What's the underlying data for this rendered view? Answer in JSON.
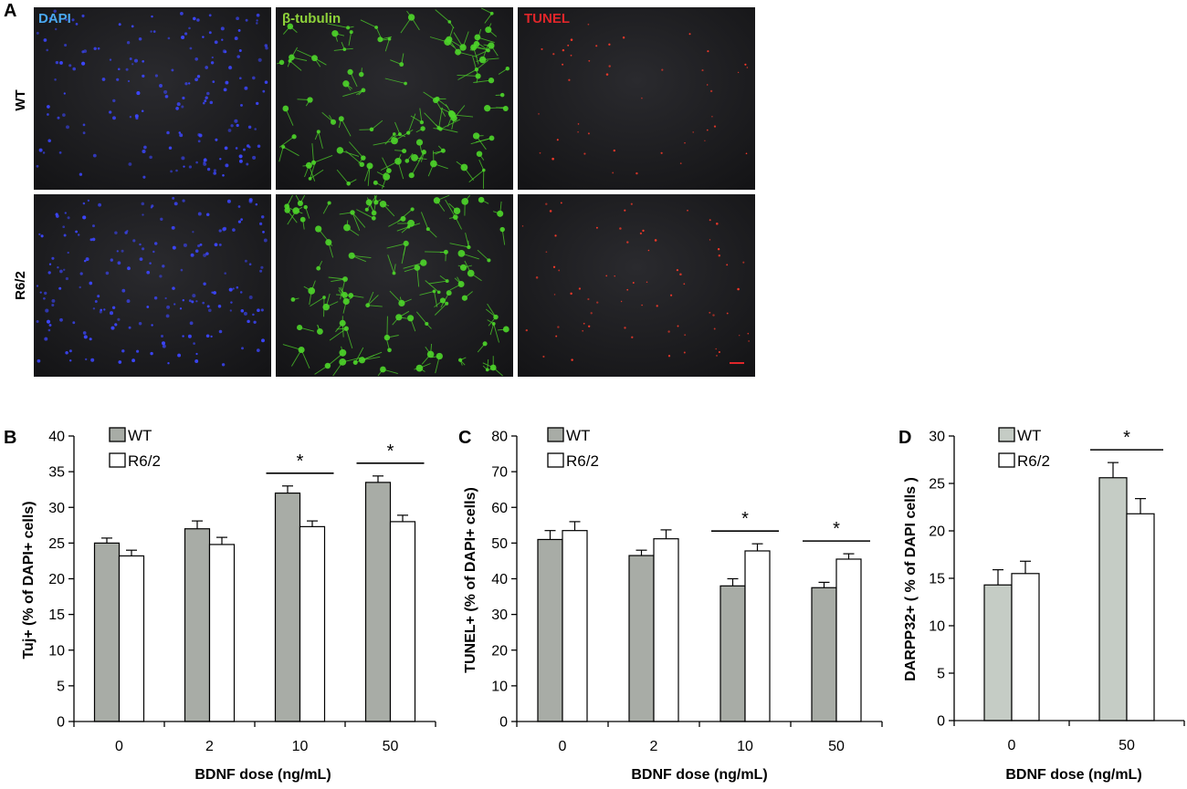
{
  "panel_A": {
    "letter": "A",
    "column_labels": [
      {
        "text": "DAPI",
        "color": "#4aa8f0"
      },
      {
        "text": "β-tubulin",
        "color": "#8ed23a"
      },
      {
        "text": "TUNEL",
        "color": "#e0262a"
      }
    ],
    "row_labels": [
      "WT",
      "R6/2"
    ],
    "channel_colors": {
      "dapi": "#3c46ff",
      "tubulin": "#4ed62a",
      "tunel": "#ff3a2a"
    },
    "scale_bar_color": "#e0262a"
  },
  "chart_data": [
    {
      "panel": "B",
      "type": "bar",
      "categories": [
        "0",
        "2",
        "10",
        "50"
      ],
      "series": [
        {
          "name": "WT",
          "values": [
            25.0,
            27.0,
            32.0,
            33.5
          ],
          "errors": [
            0.7,
            1.1,
            1.0,
            0.9
          ],
          "color": "#a8aca6"
        },
        {
          "name": "R6/2",
          "values": [
            23.2,
            24.8,
            27.3,
            28.0
          ],
          "errors": [
            0.8,
            1.0,
            0.8,
            0.9
          ],
          "color": "#ffffff"
        }
      ],
      "significance": [
        "",
        "",
        "*",
        "*"
      ],
      "xlabel": "BDNF dose (ng/mL)",
      "ylabel": "Tuj+ (% of DAPI+ cells)",
      "ylim": [
        0,
        40
      ],
      "yticks": [
        0,
        5,
        10,
        15,
        20,
        25,
        30,
        35,
        40
      ],
      "legend": "top-left"
    },
    {
      "panel": "C",
      "type": "bar",
      "categories": [
        "0",
        "2",
        "10",
        "50"
      ],
      "series": [
        {
          "name": "WT",
          "values": [
            51.0,
            46.5,
            38.0,
            37.5
          ],
          "errors": [
            2.5,
            1.5,
            2.0,
            1.5
          ],
          "color": "#a8aca6"
        },
        {
          "name": "R6/2",
          "values": [
            53.5,
            51.2,
            47.8,
            45.5
          ],
          "errors": [
            2.5,
            2.5,
            2.0,
            1.5
          ],
          "color": "#ffffff"
        }
      ],
      "significance": [
        "",
        "",
        "*",
        "*"
      ],
      "xlabel": "BDNF dose (ng/mL)",
      "ylabel": "TUNEL+ (% of DAPI+ cells)",
      "ylim": [
        0,
        80
      ],
      "yticks": [
        0,
        10,
        20,
        30,
        40,
        50,
        60,
        70,
        80
      ],
      "legend": "top-left"
    },
    {
      "panel": "D",
      "type": "bar",
      "categories": [
        "0",
        "50"
      ],
      "series": [
        {
          "name": "WT",
          "values": [
            14.3,
            25.6
          ],
          "errors": [
            1.6,
            1.6
          ],
          "color": "#c5ccc5"
        },
        {
          "name": "R6/2",
          "values": [
            15.5,
            21.8
          ],
          "errors": [
            1.3,
            1.6
          ],
          "color": "#ffffff"
        }
      ],
      "significance": [
        "",
        "*"
      ],
      "xlabel": "BDNF dose (ng/mL)",
      "ylabel": "DARPP32+ ( % of DAPI cells )",
      "ylim": [
        0,
        30
      ],
      "yticks": [
        0,
        5,
        10,
        15,
        20,
        25,
        30
      ],
      "legend": "top-left"
    }
  ]
}
